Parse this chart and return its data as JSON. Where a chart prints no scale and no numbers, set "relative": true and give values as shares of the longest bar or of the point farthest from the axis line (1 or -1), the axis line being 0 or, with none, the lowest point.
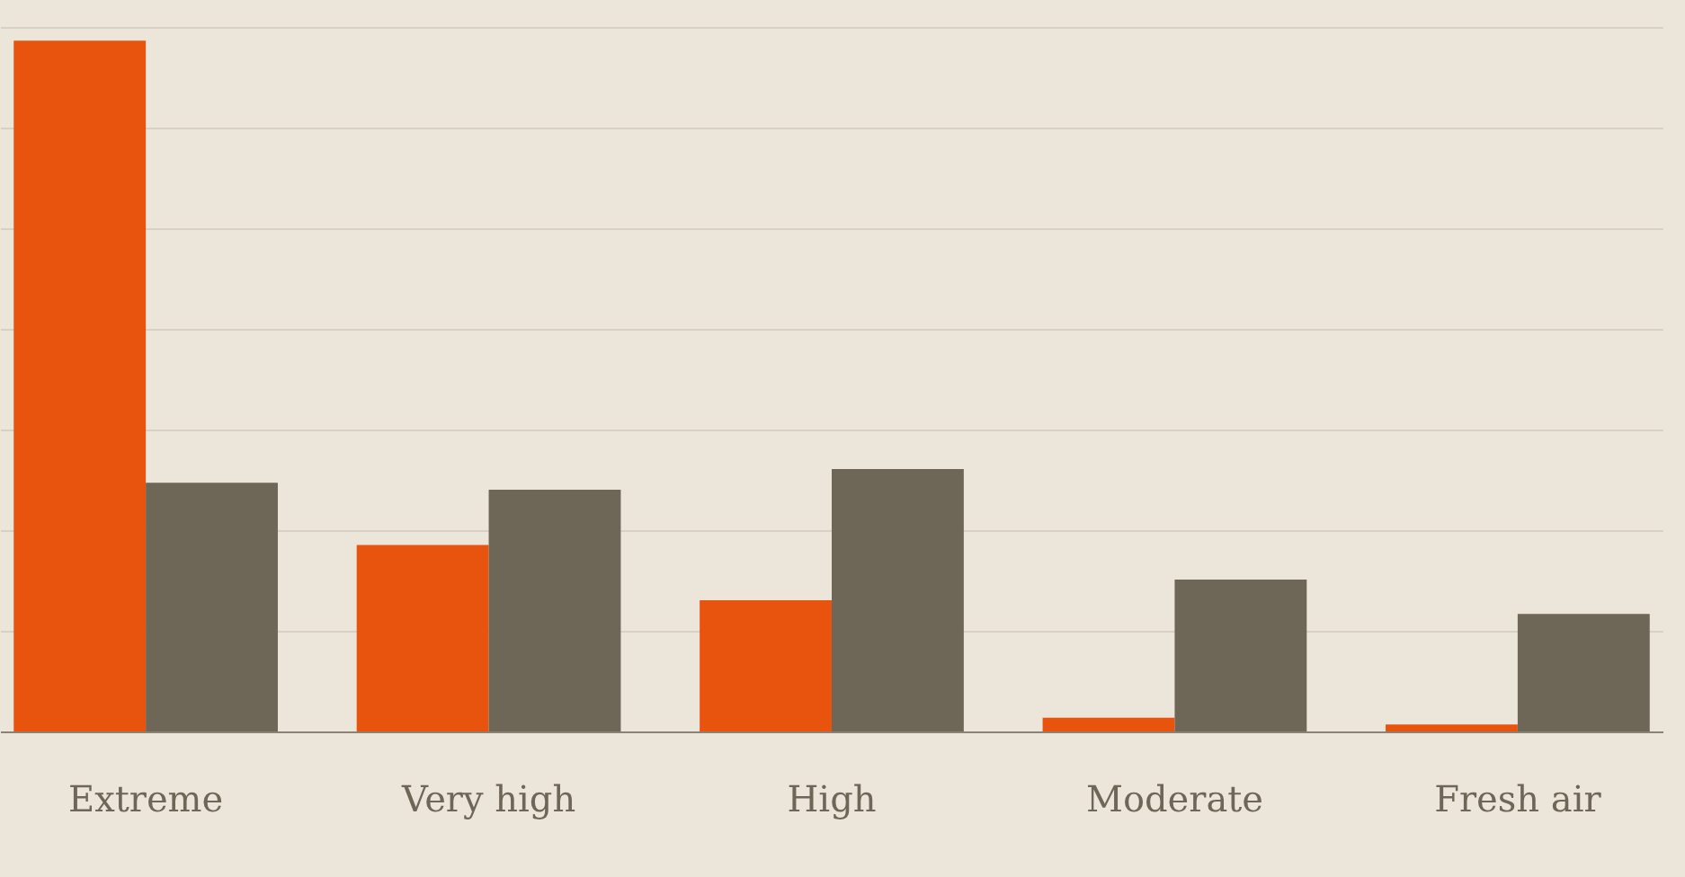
{
  "chart_data": {
    "type": "bar",
    "relative": true,
    "grid": "y",
    "categories": [
      "Extreme",
      "Very high",
      "High",
      "Moderate",
      "Fresh air"
    ],
    "series": [
      {
        "color": "#e8540e",
        "values": [
          1,
          0.27,
          0.19,
          0.02,
          0.01
        ]
      },
      {
        "color": "#6e6656",
        "values": [
          0.36,
          0.35,
          0.38,
          0.22,
          0.17
        ]
      }
    ]
  }
}
